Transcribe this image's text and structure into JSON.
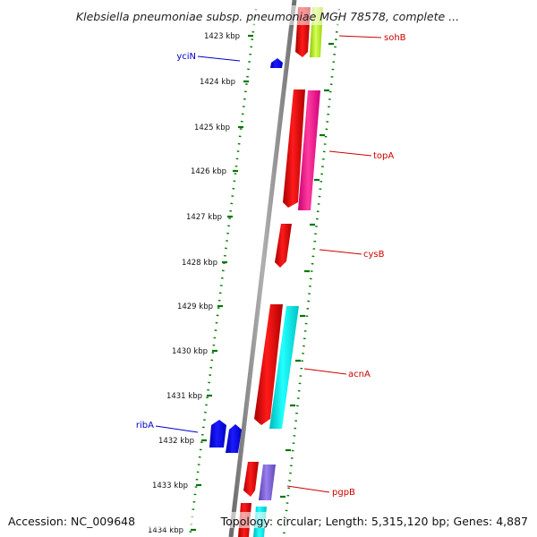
{
  "title": "Klebsiella pneumoniae subsp. pneumoniae MGH 78578, complete ...",
  "footer": {
    "accession": "Accession: NC_009648",
    "summary": "Topology: circular; Length: 5,315,120 bp; Genes: 4,887"
  },
  "ruler": {
    "unit": "kbp",
    "ticks": [
      {
        "label": "1423 kbp"
      },
      {
        "label": "1424 kbp"
      },
      {
        "label": "1425 kbp"
      },
      {
        "label": "1426 kbp"
      },
      {
        "label": "1427 kbp"
      },
      {
        "label": "1428 kbp"
      },
      {
        "label": "1429 kbp"
      },
      {
        "label": "1430 kbp"
      },
      {
        "label": "1431 kbp"
      },
      {
        "label": "1432 kbp"
      },
      {
        "label": "1433 kbp"
      },
      {
        "label": "1434 kbp"
      }
    ]
  },
  "genes": [
    {
      "label": "sohB",
      "color": "#cc0000"
    },
    {
      "label": "yciN",
      "color": "#0000cc"
    },
    {
      "label": "topA",
      "color": "#cc0000"
    },
    {
      "label": "cysB",
      "color": "#cc0000"
    },
    {
      "label": "acnA",
      "color": "#cc0000"
    },
    {
      "label": "ribA",
      "color": "#0000cc"
    },
    {
      "label": "pgpB",
      "color": "#cc0000"
    }
  ],
  "colors": {
    "backbone": "#808080",
    "ticks": "#007700",
    "cds_forward": "#ff0000",
    "cds_reverse": "#0000ff",
    "topA_partner": "#ff1493",
    "acnA_partner": "#00e5e5",
    "pgpB_partner": "#7a5fd0",
    "sohB_partner": "#b5e61d"
  }
}
